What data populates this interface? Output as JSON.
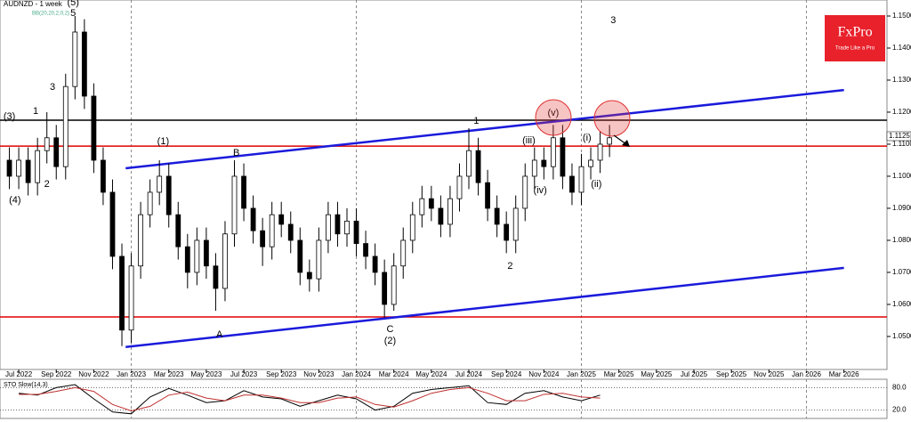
{
  "chart_data": {
    "type": "candlestick",
    "title": "AUDNZD - 1 week",
    "subtitle": "BB(20,20,2,0,2)",
    "brand": "FxPro",
    "tagline": "Trade Like a Pro",
    "x": [
      5.5,
      6.0,
      6.5,
      7.0,
      7.5,
      8.0,
      8.5,
      9.0,
      9.5,
      10.0,
      10.5,
      11.0,
      11.5,
      12.0,
      12.5,
      13.0,
      13.5,
      14.0,
      14.5,
      15.0,
      15.5,
      16.0,
      16.5,
      17.0,
      17.5,
      18.0,
      18.5,
      19.0,
      19.5,
      20.0,
      20.5,
      21.0,
      21.5,
      22.0,
      22.5,
      23.0,
      23.5,
      24.0,
      24.5,
      25.0,
      25.5,
      26.0,
      26.5,
      27.0,
      27.5,
      28.0,
      28.5,
      29.0,
      29.5,
      30.0,
      30.5,
      31.0,
      31.5,
      32.0,
      32.5,
      33.0,
      33.5,
      34.0,
      34.5,
      35.0,
      35.5,
      36.0,
      36.5,
      37.0,
      37.5
    ],
    "open": [
      1.105,
      1.1,
      1.105,
      1.098,
      1.108,
      1.112,
      1.103,
      1.128,
      1.145,
      1.125,
      1.105,
      1.095,
      1.075,
      1.052,
      1.072,
      1.088,
      1.095,
      1.1,
      1.088,
      1.078,
      1.07,
      1.08,
      1.072,
      1.065,
      1.082,
      1.1,
      1.09,
      1.083,
      1.078,
      1.088,
      1.085,
      1.08,
      1.07,
      1.068,
      1.08,
      1.088,
      1.082,
      1.086,
      1.079,
      1.075,
      1.07,
      1.06,
      1.072,
      1.08,
      1.088,
      1.093,
      1.09,
      1.085,
      1.093,
      1.1,
      1.108,
      1.098,
      1.09,
      1.085,
      1.08,
      1.09,
      1.1,
      1.105,
      1.103,
      1.112,
      1.1,
      1.095,
      1.103,
      1.105,
      1.11
    ],
    "high": [
      1.109,
      1.109,
      1.109,
      1.112,
      1.12,
      1.116,
      1.132,
      1.15,
      1.149,
      1.129,
      1.109,
      1.099,
      1.079,
      1.076,
      1.092,
      1.099,
      1.105,
      1.104,
      1.092,
      1.082,
      1.084,
      1.084,
      1.076,
      1.086,
      1.105,
      1.104,
      1.094,
      1.087,
      1.092,
      1.092,
      1.089,
      1.084,
      1.074,
      1.084,
      1.092,
      1.092,
      1.09,
      1.09,
      1.083,
      1.079,
      1.074,
      1.076,
      1.084,
      1.092,
      1.097,
      1.097,
      1.094,
      1.097,
      1.104,
      1.115,
      1.112,
      1.102,
      1.094,
      1.089,
      1.094,
      1.104,
      1.109,
      1.109,
      1.116,
      1.116,
      1.104,
      1.107,
      1.109,
      1.114,
      1.116
    ],
    "low": [
      1.096,
      1.096,
      1.094,
      1.094,
      1.104,
      1.099,
      1.099,
      1.124,
      1.121,
      1.101,
      1.091,
      1.071,
      1.047,
      1.048,
      1.068,
      1.084,
      1.091,
      1.084,
      1.074,
      1.065,
      1.066,
      1.068,
      1.058,
      1.061,
      1.078,
      1.086,
      1.079,
      1.072,
      1.074,
      1.081,
      1.076,
      1.066,
      1.064,
      1.064,
      1.076,
      1.078,
      1.078,
      1.075,
      1.071,
      1.066,
      1.056,
      1.058,
      1.068,
      1.076,
      1.084,
      1.086,
      1.081,
      1.081,
      1.089,
      1.096,
      1.094,
      1.086,
      1.081,
      1.076,
      1.076,
      1.086,
      1.096,
      1.099,
      1.099,
      1.096,
      1.091,
      1.091,
      1.099,
      1.101,
      1.106
    ],
    "close": [
      1.1,
      1.105,
      1.098,
      1.108,
      1.112,
      1.103,
      1.128,
      1.145,
      1.125,
      1.105,
      1.095,
      1.075,
      1.052,
      1.072,
      1.088,
      1.095,
      1.1,
      1.088,
      1.078,
      1.07,
      1.08,
      1.072,
      1.065,
      1.082,
      1.1,
      1.09,
      1.083,
      1.078,
      1.088,
      1.085,
      1.08,
      1.07,
      1.068,
      1.08,
      1.088,
      1.082,
      1.086,
      1.079,
      1.075,
      1.07,
      1.06,
      1.072,
      1.08,
      1.088,
      1.093,
      1.09,
      1.085,
      1.093,
      1.1,
      1.108,
      1.098,
      1.09,
      1.085,
      1.08,
      1.09,
      1.1,
      1.105,
      1.103,
      1.112,
      1.1,
      1.095,
      1.103,
      1.105,
      1.11,
      1.112
    ],
    "xlim": [
      5.0,
      52.2
    ],
    "ylim": [
      1.0397,
      1.155
    ],
    "yticks": [
      {
        "value": 1.05,
        "label": "1.0500"
      },
      {
        "value": 1.06,
        "label": "1.0600"
      },
      {
        "value": 1.07,
        "label": "1.0700"
      },
      {
        "value": 1.08,
        "label": "1.0800"
      },
      {
        "value": 1.09,
        "label": "1.0900"
      },
      {
        "value": 1.1,
        "label": "1.1000"
      },
      {
        "value": 1.11,
        "label": "1.1100"
      },
      {
        "value": 1.12,
        "label": "1.1200"
      },
      {
        "value": 1.13,
        "label": "1.1300"
      },
      {
        "value": 1.14,
        "label": "1.1400"
      },
      {
        "value": 1.15,
        "label": "1.1500"
      }
    ],
    "xticks": [
      {
        "value": 6,
        "label": "Jul 2022"
      },
      {
        "value": 8,
        "label": "Sep 2022"
      },
      {
        "value": 10,
        "label": "Nov 2022"
      },
      {
        "value": 12,
        "label": "Jan 2023"
      },
      {
        "value": 14,
        "label": "Mar 2023"
      },
      {
        "value": 16,
        "label": "May 2023"
      },
      {
        "value": 18,
        "label": "Jul 2023"
      },
      {
        "value": 20,
        "label": "Sep 2023"
      },
      {
        "value": 22,
        "label": "Nov 2023"
      },
      {
        "value": 24,
        "label": "Jan 2024"
      },
      {
        "value": 26,
        "label": "Mar 2024"
      },
      {
        "value": 28,
        "label": "May 2024"
      },
      {
        "value": 30,
        "label": "Jul 2024"
      },
      {
        "value": 32,
        "label": "Sep 2024"
      },
      {
        "value": 34,
        "label": "Nov 2024"
      },
      {
        "value": 36,
        "label": "Jan 2025"
      },
      {
        "value": 38,
        "label": "Mar 2025"
      },
      {
        "value": 40,
        "label": "May 2025"
      },
      {
        "value": 42,
        "label": "Jul 2025"
      },
      {
        "value": 44,
        "label": "Sep 2025"
      },
      {
        "value": 46,
        "label": "Nov 2025"
      },
      {
        "value": 48,
        "label": "Jan 2026"
      },
      {
        "value": 50,
        "label": "Mar 2026"
      }
    ],
    "xgrid": [
      12,
      24,
      36,
      48
    ],
    "current_price": {
      "value": 1.1125,
      "label": "1.1125"
    },
    "levels": [
      {
        "value": 1.1175,
        "color": "#000000"
      },
      {
        "value": 1.1094,
        "color": "#e00000"
      },
      {
        "value": 1.0561,
        "color": "#e00000"
      }
    ],
    "trendlines": [
      {
        "x": [
          11.7,
          50.0
        ],
        "y": [
          1.1025,
          1.1269
        ],
        "color": "#1a1adc"
      },
      {
        "x": [
          11.7,
          50.0
        ],
        "y": [
          1.0467,
          1.0714
        ],
        "color": "#1a1adc"
      }
    ],
    "annotations": [
      {
        "text": "(3)",
        "x": 5.5,
        "y": 1.1186
      },
      {
        "text": "1",
        "x": 6.9,
        "y": 1.1203
      },
      {
        "text": "2",
        "x": 7.5,
        "y": 1.0975
      },
      {
        "text": "3",
        "x": 7.8,
        "y": 1.1278
      },
      {
        "text": "(4)",
        "x": 5.8,
        "y": 1.0925
      },
      {
        "text": "(5)",
        "x": 8.9,
        "y": 1.1542
      },
      {
        "text": "5",
        "x": 8.9,
        "y": 1.1508
      },
      {
        "text": "(1)",
        "x": 13.7,
        "y": 1.1108
      },
      {
        "text": "B",
        "x": 17.6,
        "y": 1.1072
      },
      {
        "text": "A",
        "x": 16.7,
        "y": 1.0505
      },
      {
        "text": "C",
        "x": 25.8,
        "y": 1.0522
      },
      {
        "text": "(2)",
        "x": 25.8,
        "y": 1.0486
      },
      {
        "text": "1",
        "x": 30.4,
        "y": 1.1172
      },
      {
        "text": "2",
        "x": 32.2,
        "y": 1.0719
      },
      {
        "text": "3",
        "x": 37.7,
        "y": 1.1486
      },
      {
        "text": "(v)",
        "x": 34.5,
        "y": 1.1197
      },
      {
        "text": "(iii)",
        "x": 33.2,
        "y": 1.1111
      },
      {
        "text": "(iv)",
        "x": 33.8,
        "y": 1.0955
      },
      {
        "text": "(i)",
        "x": 36.3,
        "y": 1.1119
      },
      {
        "text": "(ii)",
        "x": 36.8,
        "y": 1.0975
      }
    ],
    "oscillator": {
      "title": "STO Slow(14,3)",
      "ylim": [
        0,
        100
      ],
      "yticks": [
        {
          "value": 20,
          "label": "20.0"
        },
        {
          "value": 80,
          "label": "80.0"
        }
      ],
      "x": [
        6,
        7,
        8,
        9,
        10,
        11,
        12,
        13,
        14,
        15,
        16,
        17,
        18,
        19,
        20,
        21,
        22,
        23,
        24,
        25,
        26,
        27,
        28,
        29,
        30,
        31,
        32,
        33,
        34,
        35,
        36,
        37
      ],
      "series": [
        {
          "color": "#000000",
          "values": [
            65,
            60,
            80,
            88,
            50,
            15,
            10,
            55,
            78,
            60,
            40,
            45,
            72,
            55,
            50,
            30,
            45,
            60,
            50,
            20,
            30,
            65,
            75,
            80,
            85,
            40,
            35,
            65,
            72,
            55,
            45,
            60
          ]
        },
        {
          "color": "#c03030",
          "values": [
            62,
            62,
            70,
            80,
            70,
            35,
            18,
            30,
            60,
            68,
            52,
            45,
            60,
            60,
            52,
            40,
            40,
            52,
            55,
            35,
            28,
            45,
            65,
            75,
            80,
            65,
            45,
            45,
            62,
            65,
            55,
            52
          ]
        }
      ]
    }
  }
}
